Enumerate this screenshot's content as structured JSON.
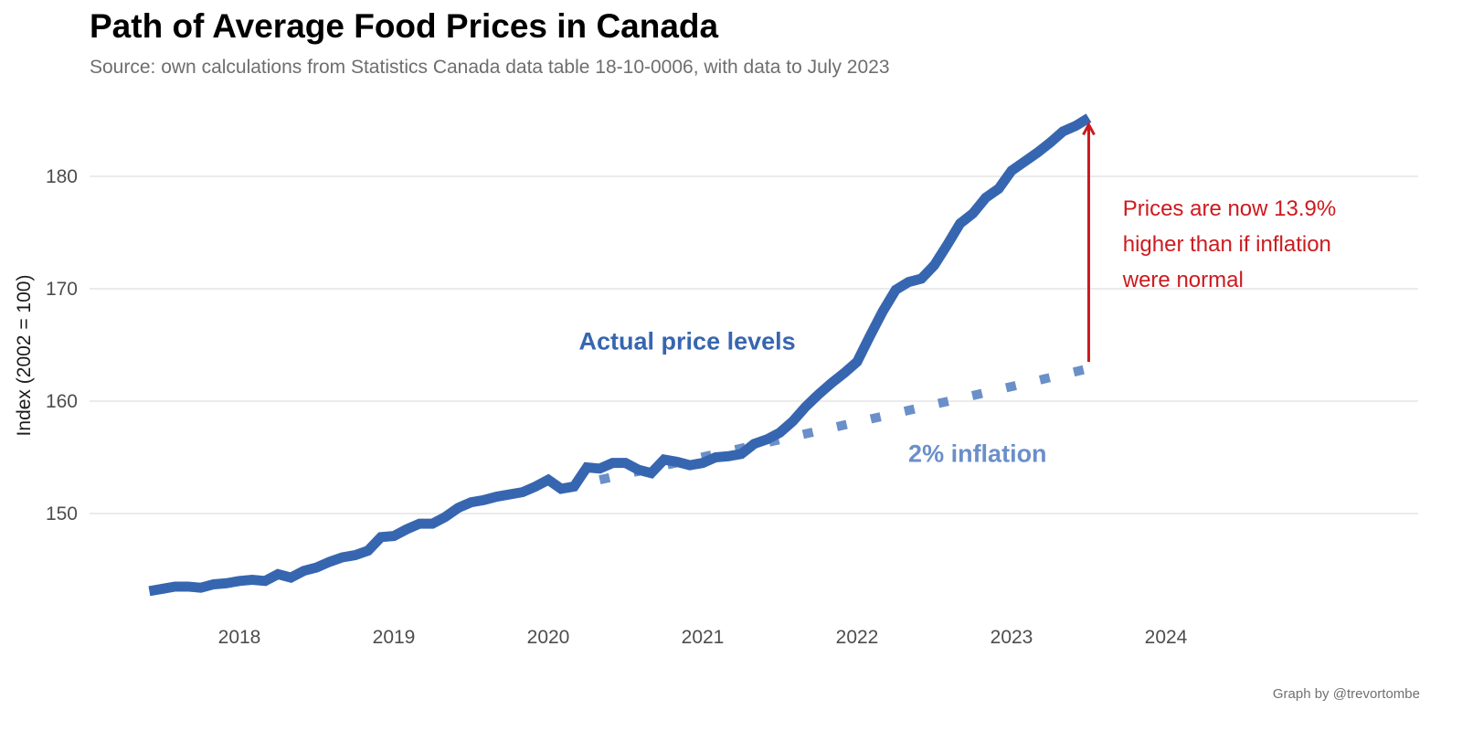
{
  "chart_data": {
    "type": "line",
    "title": "Path of Average Food Prices in Canada",
    "subtitle": "Source: own calculations from Statistics Canada data table 18-10-0006, with data to July 2023",
    "caption": "Graph by @trevortombe",
    "xlabel": "",
    "ylabel": "Index (2002 = 100)",
    "ylim": [
      140.5,
      187
    ],
    "xlim": [
      2017.2,
      2025.5
    ],
    "yticks": [
      150,
      160,
      170,
      180
    ],
    "xticks": [
      2018,
      2019,
      2020,
      2021,
      2022,
      2023,
      2024
    ],
    "grid": "horizontal",
    "legend": "none",
    "colors": {
      "actual": "#3766b0",
      "inflation": "#6b8fc8",
      "annotation": "#cc1a1f"
    },
    "series": [
      {
        "name": "Actual price levels",
        "style": "solid",
        "start": "2017-06",
        "frequency": "monthly",
        "values": [
          143.1,
          143.3,
          143.5,
          143.5,
          143.4,
          143.7,
          143.8,
          144.0,
          144.1,
          144.0,
          144.6,
          144.3,
          144.9,
          145.2,
          145.7,
          146.1,
          146.3,
          146.7,
          147.9,
          148.0,
          148.6,
          149.1,
          149.1,
          149.7,
          150.5,
          151.0,
          151.2,
          151.5,
          151.7,
          151.9,
          152.4,
          153.0,
          152.2,
          152.4,
          154.1,
          154.0,
          154.5,
          154.5,
          153.9,
          153.6,
          154.8,
          154.6,
          154.3,
          154.5,
          155.0,
          155.1,
          155.3,
          156.2,
          156.6,
          157.2,
          158.2,
          159.5,
          160.6,
          161.6,
          162.5,
          163.5,
          165.8,
          168.0,
          169.9,
          170.6,
          170.9,
          172.1,
          173.9,
          175.8,
          176.7,
          178.1,
          178.9,
          180.5,
          181.3,
          182.1,
          183.0,
          184.0,
          184.5,
          185.2
        ]
      },
      {
        "name": "2% inflation",
        "style": "dotted",
        "start": "2020-05",
        "end": "2023-07",
        "start_value": 153.0,
        "end_value": 162.7,
        "annual_rate": 0.02
      }
    ],
    "annotations": [
      {
        "id": "actual",
        "text": "Actual price levels",
        "x": 2020.9,
        "y": 165.0
      },
      {
        "id": "inflation",
        "text": "2% inflation",
        "x": 2022.78,
        "y": 155.0
      },
      {
        "id": "gap",
        "lines": [
          "Prices are now 13.9%",
          "higher than if inflation",
          "were normal"
        ],
        "x": 2023.75,
        "y": 176.0
      },
      {
        "id": "arrow",
        "from": 163.5,
        "to": 184.6,
        "x": 2023.5
      }
    ]
  }
}
